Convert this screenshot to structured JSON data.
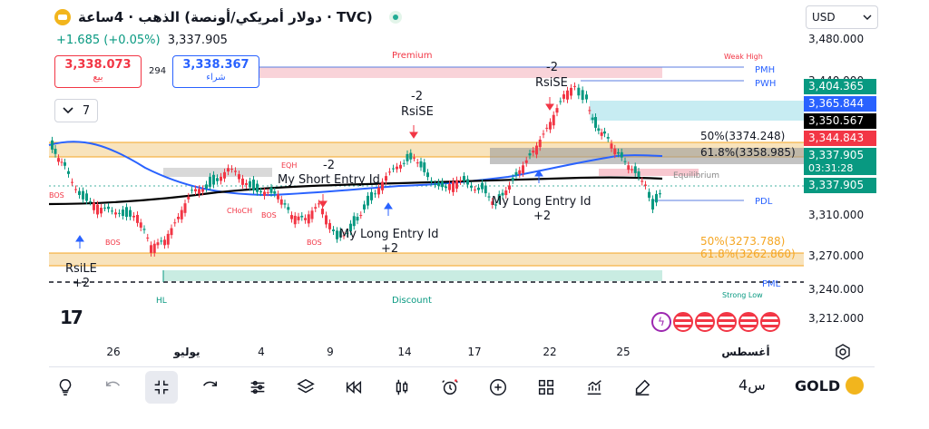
{
  "header": {
    "title": "دولار أمريكي/أونصة) الذهب · 4ساعة · TVC)",
    "change": "+1.685 (+0.05%)",
    "last_price": "3,337.905"
  },
  "trade": {
    "sell_value": "3,338.073",
    "sell_label": "بيع",
    "spread": "294",
    "buy_value": "3,338.367",
    "buy_label": "شراء"
  },
  "interval_selector": {
    "value": "7"
  },
  "currency": "USD",
  "price_scale": [
    "3,480.000",
    "3,440.000",
    "3,310.000",
    "3,270.000",
    "3,240.000",
    "3,212.000"
  ],
  "price_labels": [
    {
      "text": "3,404.365",
      "color": "#089981"
    },
    {
      "text": "3,365.844",
      "color": "#2962ff"
    },
    {
      "text": "3,350.567",
      "color": "#000000"
    },
    {
      "text": "3,344.843",
      "color": "#f23645"
    },
    {
      "text": "3,337.905",
      "color": "#089981"
    },
    {
      "text": "03:31:28",
      "color": "#089981"
    },
    {
      "text": "3,337.905",
      "color": "#089981"
    }
  ],
  "x_axis": [
    "26",
    "يوليو",
    "4",
    "9",
    "14",
    "17",
    "22",
    "25",
    "أغسطس"
  ],
  "annotations": {
    "premium": "Premium",
    "discount": "Discount",
    "weak_high": "Weak High",
    "strong_low": "Strong Low",
    "pmh": "PMH",
    "pwh": "PWH",
    "pdl": "PDL",
    "pml": "PML",
    "equilibrium": "Equilibrium",
    "eqh": "EQH",
    "hl": "HL",
    "choch": "CHoCH",
    "bos": "BOS",
    "fib_50_top": "50%(3374.248)",
    "fib_618_top": "61.8%(3358.985)",
    "fib_50_bottom": "50%(3273.788)",
    "fib_618_bottom": "61.8%(3262.860)",
    "rsise_1": "RsiSE",
    "rsise_1_qty": "-2",
    "rsise_2": "RsiSE",
    "rsise_2_qty": "-2",
    "short_entry": "My Short Entry Id",
    "short_entry_qty": "-2",
    "long_entry_1": "My Long Entry Id",
    "long_entry_1_qty": "+2",
    "long_entry_2": "My Long Entry Id",
    "long_entry_2_qty": "+2",
    "rsile": "RsiLE",
    "rsile_qty": "+2"
  },
  "toolbar": {
    "interval": "4س",
    "symbol": "GOLD"
  },
  "colors": {
    "up": "#089981",
    "down": "#f23645",
    "ma_blue": "#2962ff",
    "ma_black": "#000000"
  }
}
